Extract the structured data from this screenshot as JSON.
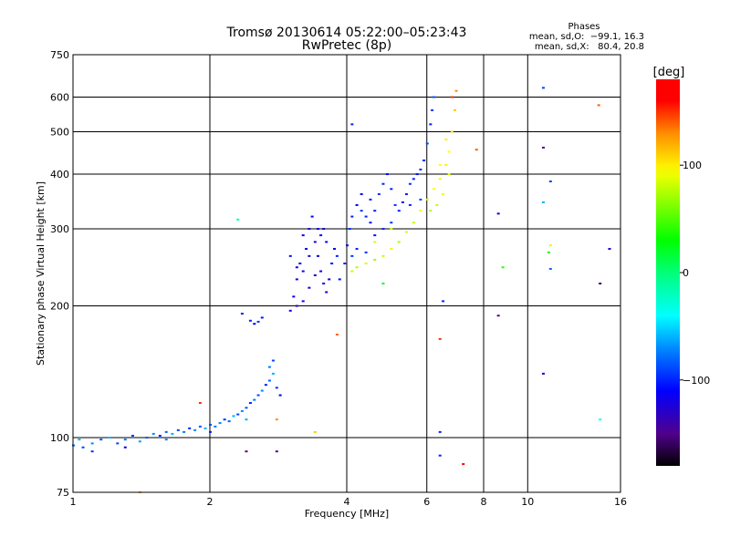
{
  "chart_data": {
    "type": "scatter",
    "title": "Tromsø 20130614 05:22:00–05:23:43",
    "subtitle": "RwPretec (8p)",
    "stats": {
      "heading": "Phases",
      "line_o": "mean, sd,O:  −99.1, 16.3",
      "line_x": "mean, sd,X:   80.4, 20.8"
    },
    "xlabel": "Frequency [MHz]",
    "ylabel": "Stationary phase Virtual Height [km]",
    "xscale": "log",
    "yscale": "log",
    "xlim": [
      1,
      16
    ],
    "ylim": [
      75,
      750
    ],
    "xticks": [
      1,
      2,
      4,
      6,
      8,
      10,
      16
    ],
    "xtick_labels": [
      "1",
      "2",
      "4",
      "6",
      "8",
      "10",
      "16"
    ],
    "yticks": [
      75,
      100,
      200,
      300,
      400,
      500,
      600,
      750
    ],
    "ytick_labels": [
      "75",
      "100",
      "200",
      "300",
      "400",
      "500",
      "600",
      "750"
    ],
    "xgrid": [
      2,
      4,
      6,
      8,
      10
    ],
    "ygrid": [
      100,
      200,
      300,
      400,
      500,
      600
    ],
    "colorbar": {
      "label": "[deg]",
      "range": [
        -180,
        180
      ],
      "ticks": [
        100,
        0,
        -100
      ],
      "tick_labels": [
        "100",
        "0",
        "−100"
      ]
    },
    "point_fields": [
      "frequency_mhz",
      "height_km",
      "phase_deg"
    ],
    "points": [
      [
        1.0,
        96,
        -80
      ],
      [
        1.03,
        99,
        -60
      ],
      [
        1.05,
        95,
        -90
      ],
      [
        1.1,
        97,
        -70
      ],
      [
        1.15,
        99,
        -85
      ],
      [
        1.2,
        100,
        -60
      ],
      [
        1.25,
        97,
        -90
      ],
      [
        1.3,
        99,
        -75
      ],
      [
        1.35,
        101,
        -95
      ],
      [
        1.4,
        98,
        -65
      ],
      [
        1.45,
        100,
        -85
      ],
      [
        1.5,
        102,
        -70
      ],
      [
        1.55,
        101,
        -100
      ],
      [
        1.6,
        103,
        -80
      ],
      [
        1.65,
        102,
        -60
      ],
      [
        1.7,
        104,
        -90
      ],
      [
        1.75,
        103,
        -75
      ],
      [
        1.8,
        105,
        -100
      ],
      [
        1.85,
        104,
        -70
      ],
      [
        1.9,
        106,
        -85
      ],
      [
        1.95,
        105,
        -60
      ],
      [
        2.0,
        107,
        -90
      ],
      [
        2.05,
        106,
        -75
      ],
      [
        2.1,
        108,
        -70
      ],
      [
        2.15,
        110,
        -95
      ],
      [
        2.2,
        109,
        -80
      ],
      [
        2.25,
        112,
        -60
      ],
      [
        2.3,
        113,
        -90
      ],
      [
        2.35,
        115,
        -70
      ],
      [
        2.4,
        117,
        -85
      ],
      [
        2.45,
        120,
        -100
      ],
      [
        2.5,
        122,
        -75
      ],
      [
        2.55,
        125,
        -90
      ],
      [
        2.6,
        128,
        -70
      ],
      [
        2.65,
        132,
        -100
      ],
      [
        2.7,
        135,
        -80
      ],
      [
        2.75,
        140,
        -60
      ],
      [
        2.8,
        130,
        -95
      ],
      [
        2.85,
        125,
        -110
      ],
      [
        2.7,
        145,
        -75
      ],
      [
        2.75,
        150,
        -90
      ],
      [
        1.1,
        93,
        -95
      ],
      [
        1.3,
        95,
        -110
      ],
      [
        1.6,
        99,
        -70
      ],
      [
        2.0,
        103,
        -100
      ],
      [
        2.4,
        110,
        -60
      ],
      [
        2.45,
        185,
        -100
      ],
      [
        2.5,
        182,
        -110
      ],
      [
        2.55,
        184,
        -95
      ],
      [
        2.6,
        188,
        -105
      ],
      [
        2.35,
        192,
        -100
      ],
      [
        3.0,
        195,
        -120
      ],
      [
        3.05,
        210,
        -115
      ],
      [
        3.1,
        230,
        -125
      ],
      [
        3.15,
        250,
        -110
      ],
      [
        3.2,
        240,
        -120
      ],
      [
        3.25,
        270,
        -115
      ],
      [
        3.3,
        300,
        -120
      ],
      [
        3.35,
        320,
        -110
      ],
      [
        3.4,
        280,
        -125
      ],
      [
        3.45,
        260,
        -115
      ],
      [
        3.5,
        240,
        -120
      ],
      [
        3.55,
        225,
        -110
      ],
      [
        3.6,
        215,
        -120
      ],
      [
        3.65,
        230,
        -115
      ],
      [
        3.7,
        250,
        -105
      ],
      [
        3.75,
        270,
        -110
      ],
      [
        3.1,
        200,
        -125
      ],
      [
        3.2,
        205,
        -120
      ],
      [
        3.3,
        220,
        -115
      ],
      [
        3.4,
        235,
        -125
      ],
      [
        3.5,
        290,
        -110
      ],
      [
        3.55,
        300,
        -120
      ],
      [
        3.6,
        280,
        -115
      ],
      [
        3.0,
        260,
        -105
      ],
      [
        3.1,
        245,
        -120
      ],
      [
        3.2,
        290,
        -115
      ],
      [
        3.3,
        260,
        -125
      ],
      [
        3.45,
        300,
        -110
      ],
      [
        3.8,
        260,
        -100
      ],
      [
        3.85,
        230,
        -105
      ],
      [
        3.95,
        250,
        -100
      ],
      [
        4.0,
        275,
        -105
      ],
      [
        4.05,
        300,
        -95
      ],
      [
        4.1,
        320,
        -100
      ],
      [
        4.2,
        340,
        -110
      ],
      [
        4.3,
        330,
        -95
      ],
      [
        4.4,
        320,
        -100
      ],
      [
        4.5,
        310,
        -105
      ],
      [
        4.6,
        330,
        -100
      ],
      [
        4.7,
        360,
        -95
      ],
      [
        4.8,
        380,
        -100
      ],
      [
        4.9,
        400,
        -110
      ],
      [
        5.0,
        370,
        -100
      ],
      [
        5.1,
        340,
        -95
      ],
      [
        5.2,
        330,
        -100
      ],
      [
        5.3,
        345,
        -105
      ],
      [
        5.4,
        360,
        -100
      ],
      [
        5.5,
        380,
        -95
      ],
      [
        5.6,
        390,
        -100
      ],
      [
        5.7,
        400,
        -105
      ],
      [
        5.8,
        410,
        -95
      ],
      [
        5.9,
        430,
        -100
      ],
      [
        6.0,
        470,
        -90
      ],
      [
        6.1,
        520,
        -100
      ],
      [
        6.15,
        560,
        -95
      ],
      [
        6.2,
        600,
        -85
      ],
      [
        4.2,
        270,
        -100
      ],
      [
        4.4,
        265,
        -95
      ],
      [
        4.6,
        290,
        -105
      ],
      [
        4.8,
        300,
        -100
      ],
      [
        5.0,
        310,
        -95
      ],
      [
        4.3,
        360,
        -110
      ],
      [
        4.5,
        350,
        -100
      ],
      [
        4.1,
        260,
        -95
      ],
      [
        5.5,
        340,
        -100
      ],
      [
        5.8,
        350,
        -90
      ],
      [
        4.1,
        240,
        80
      ],
      [
        4.2,
        245,
        75
      ],
      [
        4.4,
        250,
        85
      ],
      [
        4.6,
        255,
        70
      ],
      [
        4.8,
        260,
        80
      ],
      [
        5.0,
        270,
        90
      ],
      [
        5.2,
        280,
        75
      ],
      [
        5.4,
        295,
        85
      ],
      [
        5.6,
        310,
        80
      ],
      [
        5.8,
        330,
        90
      ],
      [
        6.0,
        350,
        85
      ],
      [
        6.2,
        370,
        95
      ],
      [
        6.4,
        390,
        90
      ],
      [
        6.6,
        420,
        100
      ],
      [
        6.7,
        450,
        95
      ],
      [
        6.8,
        500,
        105
      ],
      [
        6.9,
        560,
        110
      ],
      [
        6.95,
        620,
        130
      ],
      [
        6.3,
        340,
        80
      ],
      [
        6.5,
        360,
        90
      ],
      [
        6.7,
        400,
        85
      ],
      [
        6.1,
        330,
        75
      ],
      [
        6.4,
        420,
        95
      ],
      [
        6.6,
        480,
        100
      ],
      [
        6.8,
        600,
        150
      ],
      [
        4.6,
        280,
        85
      ],
      [
        5.0,
        300,
        80
      ],
      [
        4.1,
        520,
        -100
      ],
      [
        8.6,
        325,
        -120
      ],
      [
        8.6,
        190,
        -150
      ],
      [
        8.8,
        245,
        40
      ],
      [
        10.8,
        630,
        -90
      ],
      [
        10.8,
        460,
        -150
      ],
      [
        10.8,
        345,
        -60
      ],
      [
        11.2,
        385,
        -90
      ],
      [
        11.2,
        275,
        100
      ],
      [
        11.1,
        265,
        30
      ],
      [
        10.8,
        140,
        -120
      ],
      [
        11.2,
        243,
        -80
      ],
      [
        14.3,
        575,
        140
      ],
      [
        14.4,
        225,
        -160
      ],
      [
        15.1,
        270,
        -120
      ],
      [
        14.4,
        110,
        -40
      ],
      [
        6.4,
        91,
        -100
      ],
      [
        6.4,
        103,
        -100
      ],
      [
        7.2,
        87,
        170
      ],
      [
        6.4,
        168,
        150
      ],
      [
        6.5,
        205,
        -100
      ],
      [
        2.8,
        93,
        -150
      ],
      [
        2.4,
        93,
        -150
      ],
      [
        2.8,
        110,
        130
      ],
      [
        3.4,
        103,
        110
      ],
      [
        3.8,
        172,
        140
      ],
      [
        1.4,
        75,
        120
      ],
      [
        1.9,
        120,
        150
      ],
      [
        2.3,
        315,
        -20
      ],
      [
        4.8,
        225,
        20
      ],
      [
        7.7,
        455,
        140
      ]
    ]
  }
}
